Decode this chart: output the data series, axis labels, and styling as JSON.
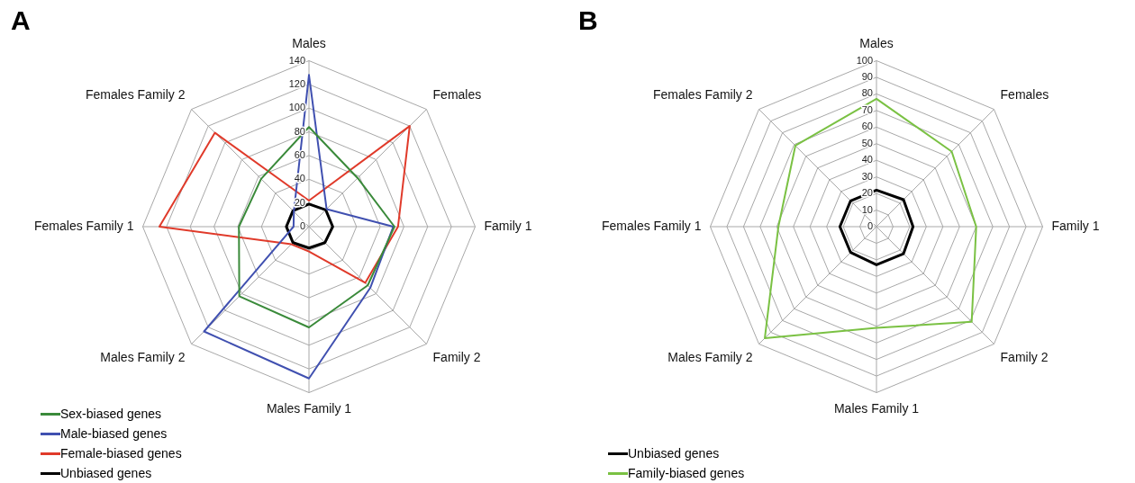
{
  "chart_data": [
    {
      "type": "radar",
      "title": "A",
      "categories": [
        "Males",
        "Females",
        "Family 1",
        "Family 2",
        "Males Family 1",
        "Males Family 2",
        "Females Family 1",
        "Females Family 2"
      ],
      "ylim": [
        0,
        140
      ],
      "yticks": [
        0,
        20,
        40,
        60,
        80,
        100,
        120,
        140
      ],
      "grid": true,
      "legend": "bottom left",
      "marker": "none",
      "line_style": "solid",
      "series": [
        {
          "name": "Sex-biased genes",
          "color": "#3a8a3a",
          "values": [
            84,
            58,
            72,
            70,
            85,
            83,
            59,
            57
          ]
        },
        {
          "name": "Male-biased genes",
          "color": "#4050b0",
          "values": [
            128,
            21,
            71,
            73,
            128,
            125,
            13,
            18
          ]
        },
        {
          "name": "Female-biased genes",
          "color": "#e03a2a",
          "values": [
            22,
            120,
            75,
            67,
            21,
            21,
            126,
            112
          ]
        },
        {
          "name": "Unbiased genes",
          "color": "#000000",
          "values": [
            19,
            20,
            20,
            19,
            18,
            19,
            19,
            19
          ]
        }
      ]
    },
    {
      "type": "radar",
      "title": "B",
      "categories": [
        "Males",
        "Females",
        "Family 1",
        "Family 2",
        "Males Family 1",
        "Males Family 2",
        "Females Family 1",
        "Females Family 2"
      ],
      "ylim": [
        0,
        100
      ],
      "yticks": [
        0,
        10,
        20,
        30,
        40,
        50,
        60,
        70,
        80,
        90,
        100
      ],
      "grid": true,
      "legend": "bottom left",
      "marker": "none",
      "line_style": "solid",
      "series": [
        {
          "name": "Unbiased genes",
          "color": "#000000",
          "values": [
            22,
            23,
            22,
            23,
            23,
            22,
            22,
            22
          ]
        },
        {
          "name": "Family-biased genes",
          "color": "#7ac143",
          "values": [
            77,
            64,
            60,
            81,
            61,
            95,
            59,
            69
          ]
        }
      ]
    }
  ]
}
